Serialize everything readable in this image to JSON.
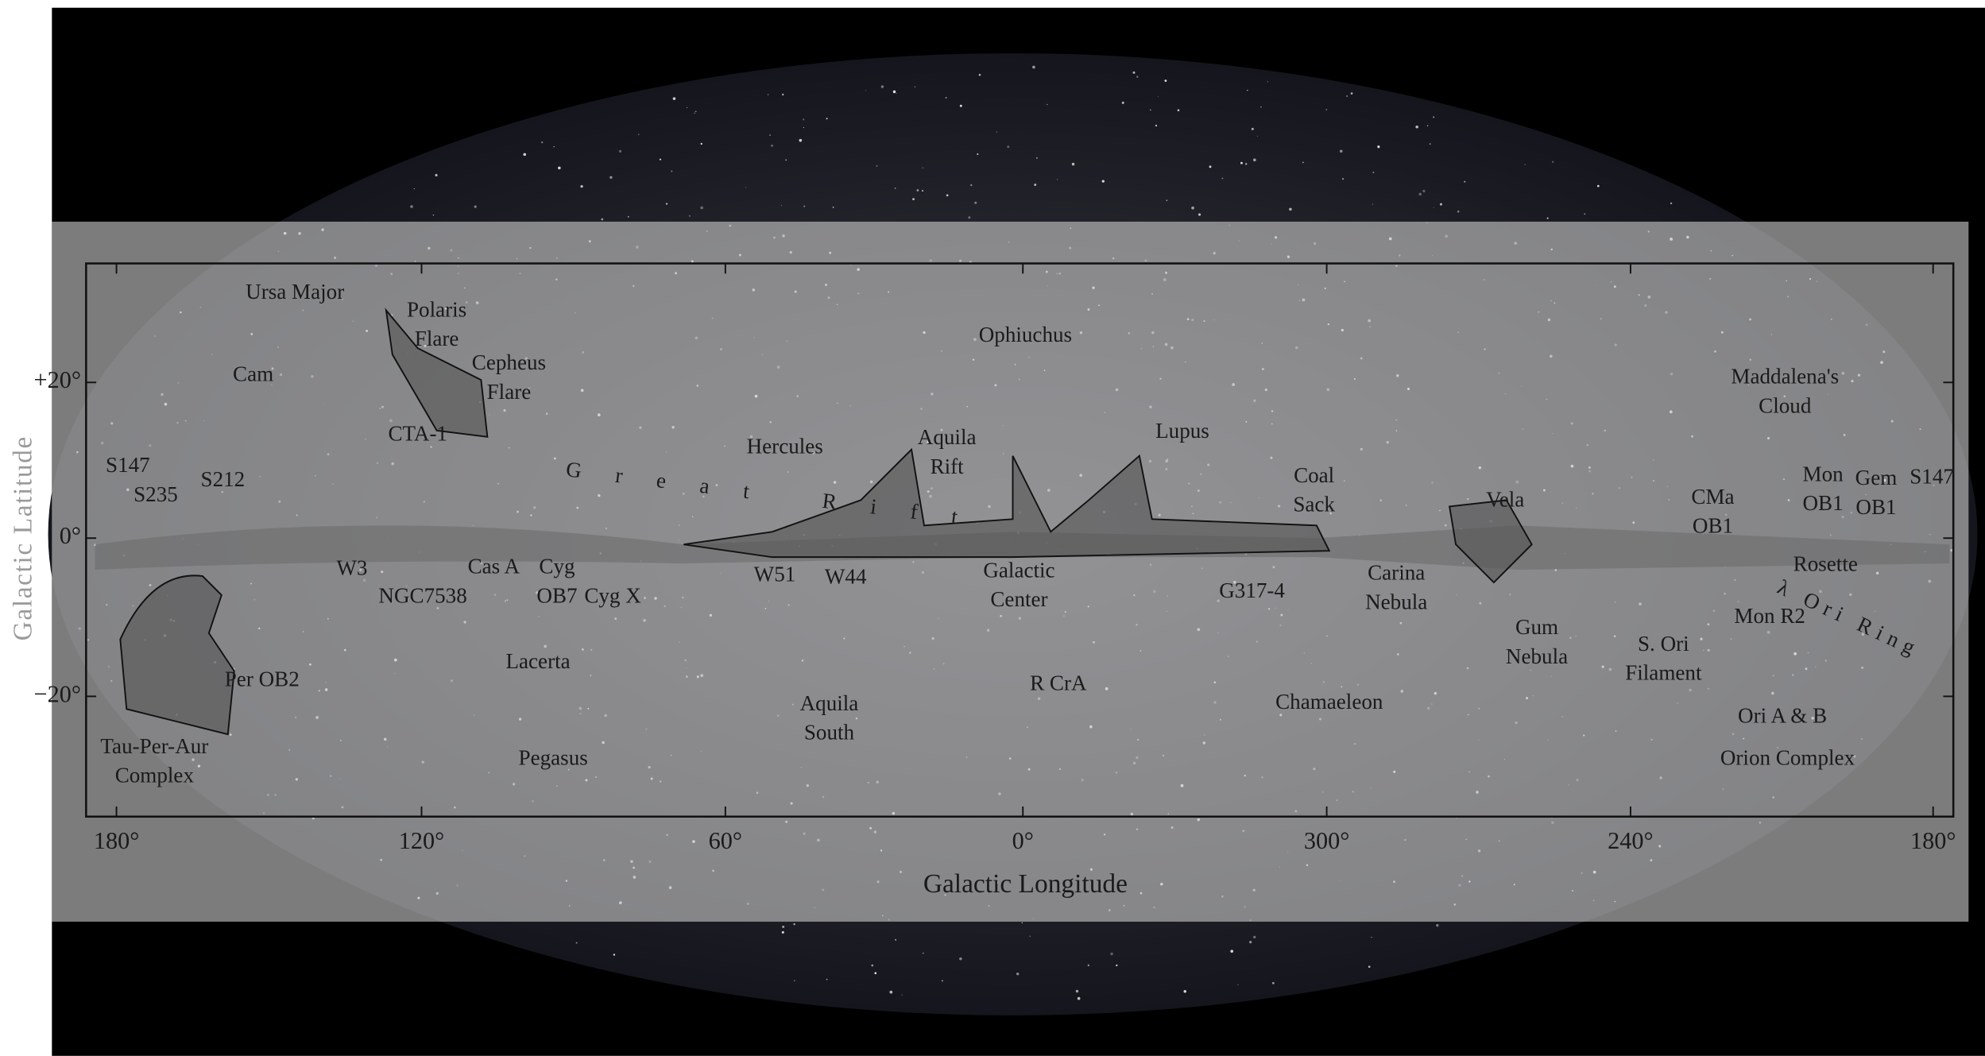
{
  "axes": {
    "x_label": "Galactic Longitude",
    "y_label": "Galactic Latitude",
    "xticks": [
      "180°",
      "120°",
      "60°",
      "0°",
      "300°",
      "240°",
      "180°"
    ],
    "yticks": [
      "+20°",
      "0°",
      "−20°"
    ]
  },
  "labels": [
    [
      "Ursa Major"
    ],
    [
      "Polaris",
      "Flare"
    ],
    [
      "Cepheus",
      "Flare"
    ],
    [
      "Cam"
    ],
    [
      "CTA-1"
    ],
    [
      "S147"
    ],
    [
      "S235"
    ],
    [
      "S212"
    ],
    [
      "W3"
    ],
    [
      "NGC7538"
    ],
    [
      "Cas A"
    ],
    [
      "Cyg",
      "OB7"
    ],
    [
      "Cyg X"
    ],
    [
      "Great Rift"
    ],
    [
      "Hercules"
    ],
    [
      "Aquila",
      "Rift"
    ],
    [
      "Ophiuchus"
    ],
    [
      "Lupus"
    ],
    [
      "W51"
    ],
    [
      "W44"
    ],
    [
      "Galactic",
      "Center"
    ],
    [
      "Coal",
      "Sack"
    ],
    [
      "G317-4"
    ],
    [
      "Carina",
      "Nebula"
    ],
    [
      "Vela"
    ],
    [
      "Gum",
      "Nebula"
    ],
    [
      "Maddalena's",
      "Cloud"
    ],
    [
      "CMa",
      "OB1"
    ],
    [
      "Mon",
      "OB1"
    ],
    [
      "Gem",
      "OB1"
    ],
    [
      "S147"
    ],
    [
      "Rosette"
    ],
    [
      "λ Ori Ring"
    ],
    [
      "Mon R2"
    ],
    [
      "S. Ori",
      "Filament"
    ],
    [
      "Ori A & B"
    ],
    [
      "Orion Complex"
    ],
    [
      "Per OB2"
    ],
    [
      "Tau-Per-Aur",
      "Complex"
    ],
    [
      "Lacerta"
    ],
    [
      "Pegasus"
    ],
    [
      "Aquila",
      "South"
    ],
    [
      "R CrA"
    ],
    [
      "Chamaeleon"
    ]
  ]
}
